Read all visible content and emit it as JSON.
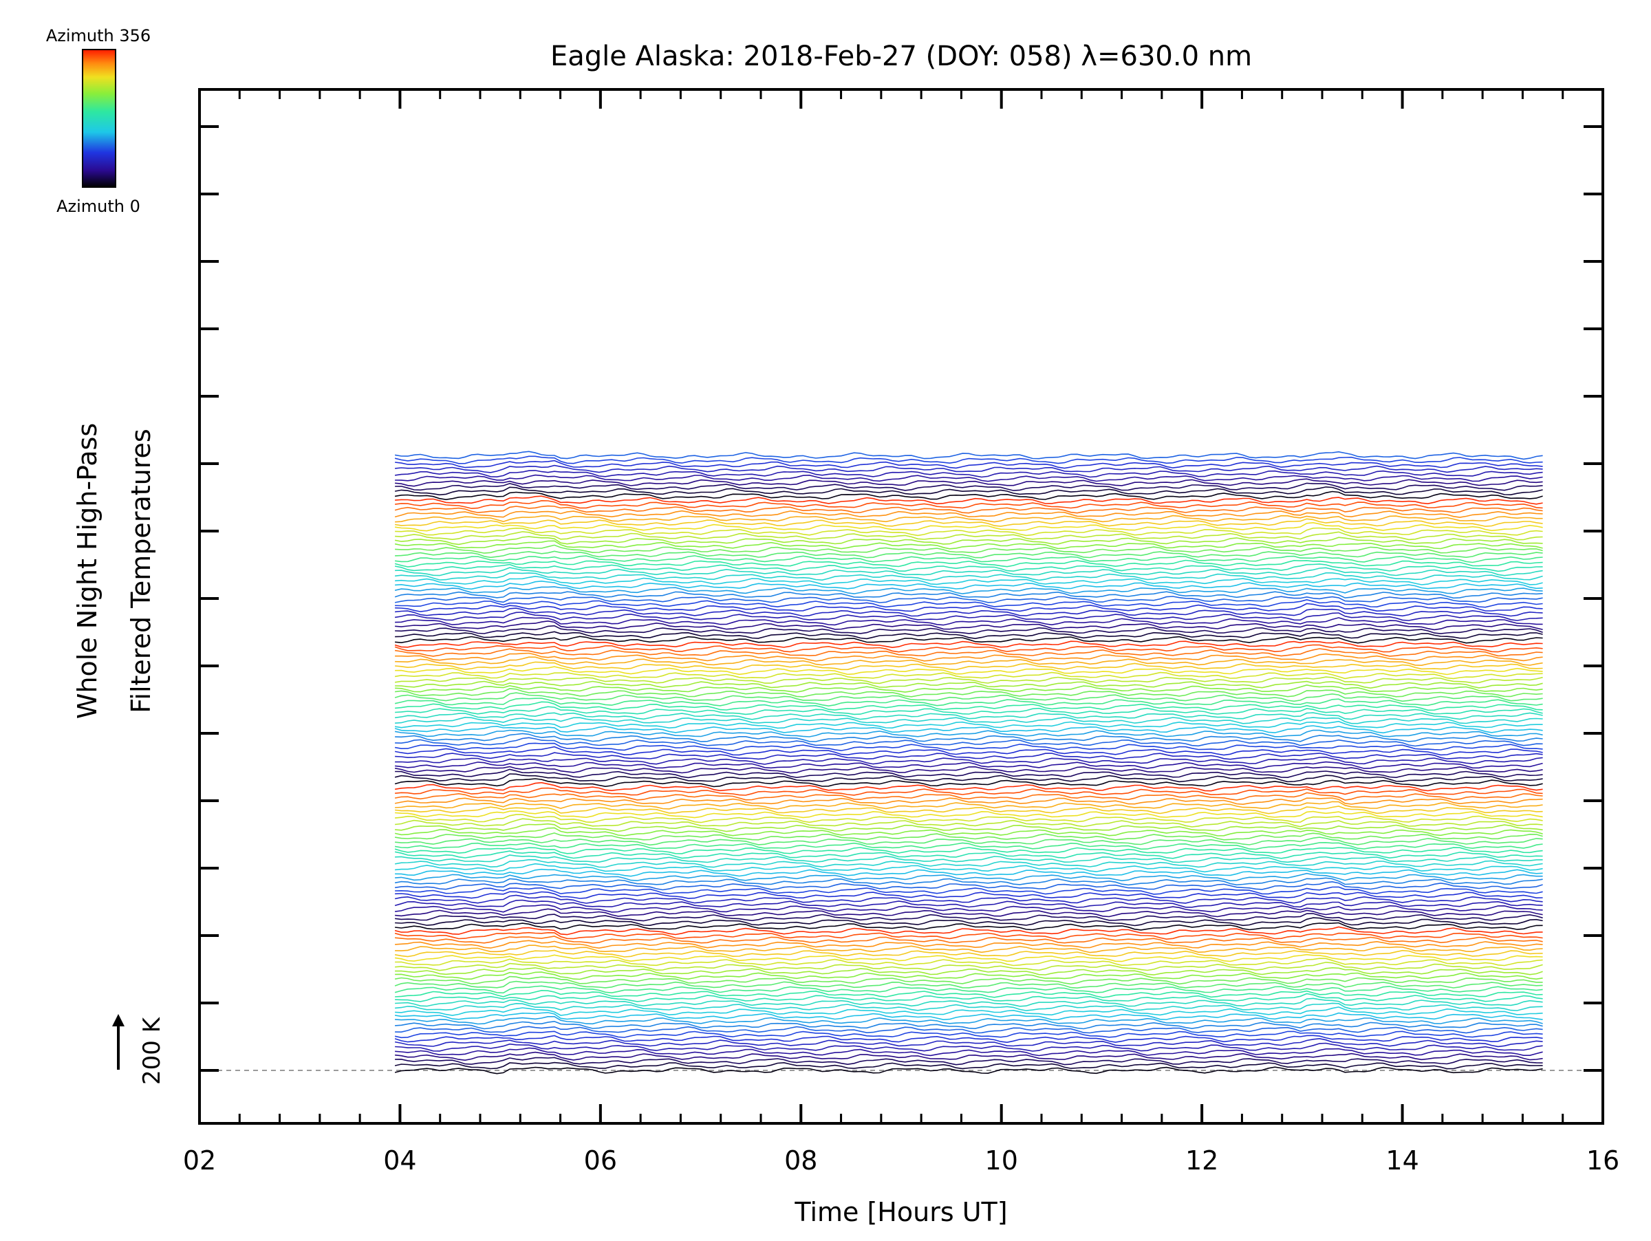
{
  "chart_data": {
    "type": "line",
    "title": "Eagle Alaska: 2018-Feb-27 (DOY: 058) λ=630.0 nm",
    "xlabel": "Time [Hours UT]",
    "ylabel_line1": "Whole Night High-Pass",
    "ylabel_line2": "Filtered Temperatures",
    "xlim": [
      2,
      16
    ],
    "x_tick_labels": [
      "02",
      "04",
      "06",
      "08",
      "10",
      "12",
      "14",
      "16"
    ],
    "x_ticks": [
      2,
      4,
      6,
      8,
      10,
      12,
      14,
      16
    ],
    "x_minor_step": 0.4,
    "y_major_tick_count": 15,
    "time_start": 3.95,
    "time_end": 15.4,
    "series_count": 138,
    "baseline_style": "dashed",
    "scale_bar": {
      "label": "200 K",
      "value": 200,
      "unit": "K",
      "arrow": "up"
    },
    "colorbar": {
      "label_top": "Azimuth  356",
      "label_bottom": "Azimuth  0",
      "min": 0,
      "max": 356,
      "colormap": "rainbow",
      "placement": "top-left"
    },
    "series_color_sequence": "azimuth rainbow, cycling black-blue-cyan-green-yellow-red upward",
    "grid": false
  }
}
